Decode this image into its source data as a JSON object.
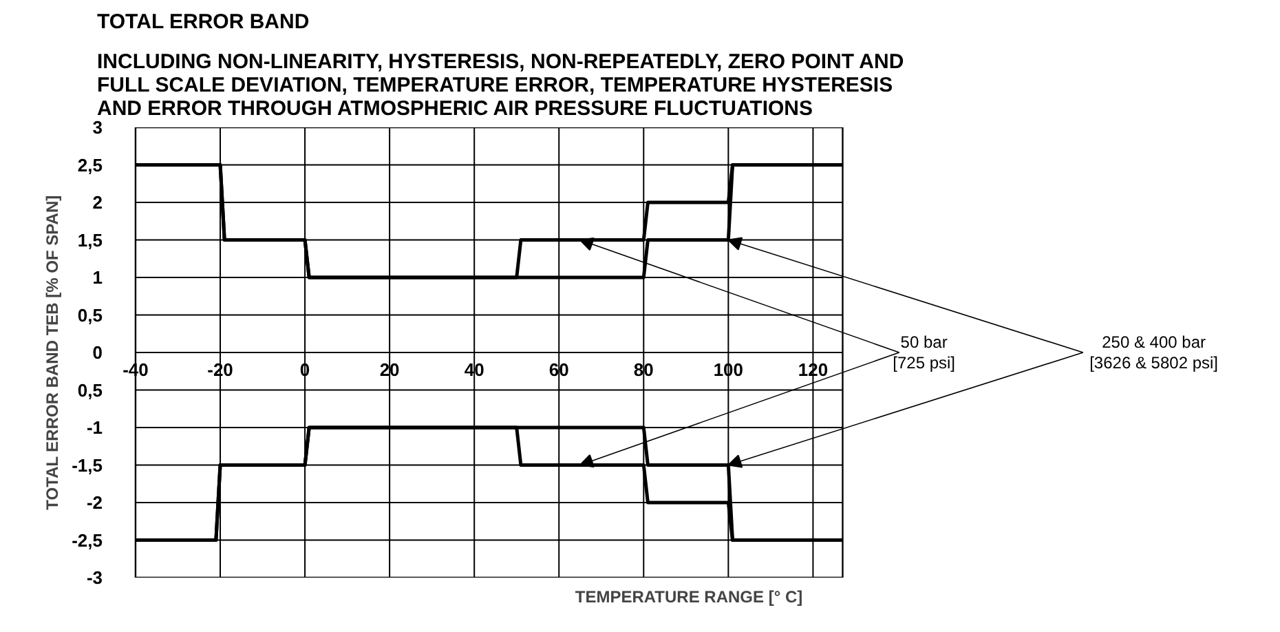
{
  "chart_data": {
    "type": "line",
    "title": "TOTAL ERROR BAND",
    "subtitle": "INCLUDING NON-LINEARITY, HYSTERESIS, NON-REPEATEDLY, ZERO POINT AND\nFULL SCALE DEVIATION, TEMPERATURE ERROR, TEMPERATURE HYSTERESIS\nAND ERROR THROUGH ATMOSPHERIC AIR PRESSURE FLUCTUATIONS",
    "xlabel": "TEMPERATURE RANGE [° C]",
    "ylabel": "TOTAL ERROR BAND TEB [% OF SPAN]",
    "series": [
      {
        "color": "#000000",
        "x": [
          -40,
          -20,
          -19,
          0,
          1,
          50,
          51,
          80,
          81,
          100,
          101,
          127
        ],
        "values": [
          2.5,
          2.5,
          1.5,
          1.5,
          1,
          1,
          1.5,
          1.5,
          2,
          2,
          2.5,
          2.5
        ]
      },
      {
        "color": "#000000",
        "x": [
          -40,
          -21,
          -20,
          0,
          1,
          50,
          51,
          80,
          81,
          100,
          101,
          127
        ],
        "values": [
          -2.5,
          -2.5,
          -1.5,
          -1.5,
          -1,
          -1,
          -1.5,
          -1.5,
          -2,
          -2,
          -2.5,
          -2.5
        ]
      },
      {
        "color": "#000000",
        "x": [
          -40,
          -20,
          -19,
          0,
          1,
          80,
          81,
          100,
          101,
          127
        ],
        "values": [
          2.5,
          2.5,
          1.5,
          1.5,
          1,
          1,
          1.5,
          1.5,
          2.5,
          2.5
        ]
      },
      {
        "color": "#000000",
        "x": [
          -40,
          -21,
          -20,
          0,
          1,
          80,
          81,
          100,
          101,
          127
        ],
        "values": [
          -2.5,
          -2.5,
          -1.5,
          -1.5,
          -1,
          -1,
          -1.5,
          -1.5,
          -2.5,
          -2.5
        ]
      }
    ],
    "annotations": [
      {
        "text": "50 bar\n[725 psi]",
        "x": 65,
        "y": 1.5
      },
      {
        "text": "250 & 400 bar\n[3626 & 5802 psi]",
        "x": 100,
        "y": 1.5
      }
    ],
    "xlim": [
      -40,
      127
    ],
    "ylim": [
      -3,
      3
    ],
    "xticks": [
      -40,
      -20,
      0,
      20,
      40,
      60,
      80,
      100,
      120
    ],
    "yticks": [
      3,
      {
        "value": 2.5,
        "label": "2,5"
      },
      2,
      {
        "value": 1.5,
        "label": "1,5"
      },
      1,
      {
        "value": 0.5,
        "label": "0,5"
      },
      0,
      {
        "value": -0.5,
        "label": "0,5"
      },
      -1,
      {
        "value": -1.5,
        "label": "-1,5"
      },
      -2,
      {
        "value": -2.5,
        "label": "-2,5"
      },
      -3
    ],
    "grid": true,
    "marker": "none",
    "line_style": "solid"
  }
}
